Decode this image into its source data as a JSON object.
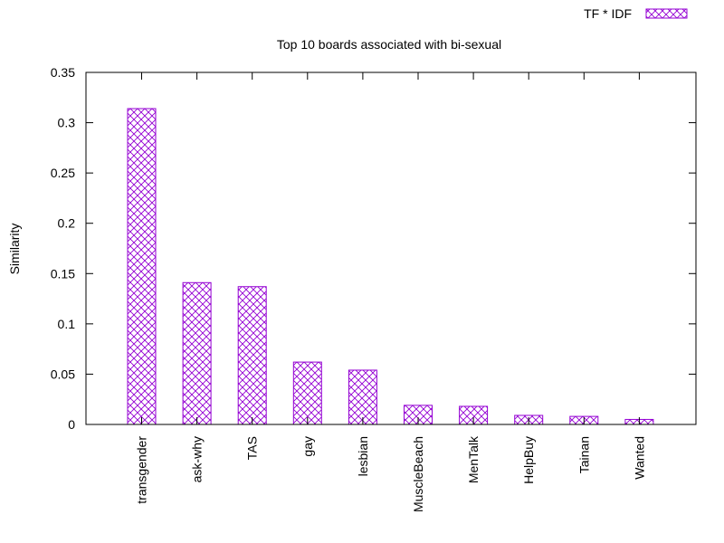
{
  "chart_data": {
    "type": "bar",
    "title": "Top 10 boards associated with bi-sexual",
    "xlabel": "",
    "ylabel": "Similarity",
    "ylim": [
      0,
      0.35
    ],
    "yticks": [
      "0",
      "0.05",
      "0.1",
      "0.15",
      "0.2",
      "0.25",
      "0.3",
      "0.35"
    ],
    "grid": false,
    "legend_position": "top-right",
    "categories": [
      "transgender",
      "ask-why",
      "TAS",
      "gay",
      "lesbian",
      "MuscleBeach",
      "MenTalk",
      "HelpBuy",
      "Tainan",
      "Wanted"
    ],
    "series": [
      {
        "name": "TF * IDF",
        "color": "#9400d3",
        "pattern": "crosshatch",
        "values": [
          0.314,
          0.141,
          0.137,
          0.062,
          0.054,
          0.019,
          0.018,
          0.009,
          0.008,
          0.005
        ]
      }
    ]
  }
}
